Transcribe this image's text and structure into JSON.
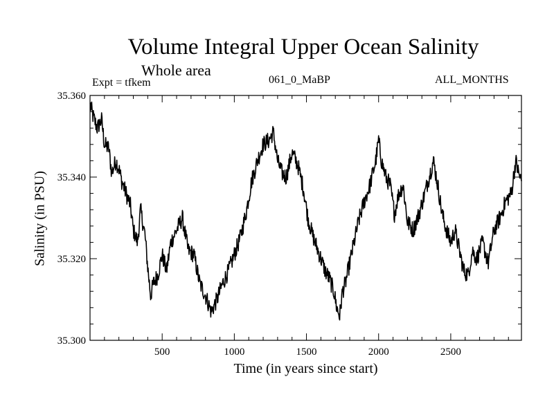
{
  "chart_data": {
    "type": "line",
    "title": "Volume Integral Upper Ocean Salinity",
    "subtitle": "Whole area",
    "annotations": {
      "experiment": "Expt = tfkem",
      "run": "061_0_MaBP",
      "months": "ALL_MONTHS"
    },
    "xlabel": "Time (in years since start)",
    "ylabel": "Salinity (in PSU)",
    "xlim": [
      0,
      2990
    ],
    "ylim": [
      35.3,
      35.36
    ],
    "xticks": [
      500,
      1000,
      1500,
      2000,
      2500
    ],
    "yticks": [
      "35.300",
      "35.320",
      "35.340",
      "35.360"
    ],
    "grid": false,
    "line_color": "#000000",
    "series": [
      {
        "x": [
          0,
          20,
          50,
          80,
          100,
          130,
          150,
          180,
          200,
          220,
          250,
          280,
          300,
          330,
          350,
          380,
          400,
          420,
          440,
          470,
          500,
          530,
          560,
          600,
          640,
          680,
          720,
          760,
          800,
          840,
          880,
          920,
          960,
          1000,
          1040,
          1080,
          1120,
          1160,
          1200,
          1240,
          1270,
          1300,
          1330,
          1360,
          1400,
          1440,
          1480,
          1510,
          1540,
          1570,
          1600,
          1630,
          1660,
          1690,
          1710,
          1730,
          1750,
          1770,
          1800,
          1830,
          1860,
          1900,
          1940,
          1980,
          2000,
          2020,
          2050,
          2080,
          2110,
          2140,
          2170,
          2200,
          2240,
          2280,
          2320,
          2350,
          2380,
          2410,
          2440,
          2470,
          2500,
          2530,
          2560,
          2590,
          2620,
          2650,
          2680,
          2720,
          2760,
          2800,
          2840,
          2880,
          2920,
          2950,
          2970,
          2990
        ],
        "y": [
          35.358,
          35.355,
          35.352,
          35.354,
          35.348,
          35.347,
          35.341,
          35.344,
          35.342,
          35.339,
          35.336,
          35.333,
          35.327,
          35.324,
          35.332,
          35.326,
          35.318,
          35.311,
          35.314,
          35.316,
          35.321,
          35.317,
          35.324,
          35.327,
          35.33,
          35.322,
          35.321,
          35.314,
          35.311,
          35.307,
          35.31,
          35.314,
          35.317,
          35.321,
          35.325,
          35.331,
          35.339,
          35.344,
          35.348,
          35.349,
          35.351,
          35.344,
          35.341,
          35.34,
          35.346,
          35.343,
          35.337,
          35.33,
          35.326,
          35.323,
          35.32,
          35.317,
          35.315,
          35.312,
          35.308,
          35.306,
          35.312,
          35.314,
          35.319,
          35.324,
          35.329,
          35.334,
          35.338,
          35.344,
          35.349,
          35.344,
          35.34,
          35.338,
          35.331,
          35.336,
          35.338,
          35.329,
          35.327,
          35.331,
          35.336,
          35.34,
          35.344,
          35.338,
          35.331,
          35.327,
          35.324,
          35.327,
          35.322,
          35.317,
          35.316,
          35.322,
          35.32,
          35.324,
          35.319,
          35.327,
          35.33,
          35.334,
          35.336,
          35.344,
          35.341,
          35.339
        ]
      }
    ]
  }
}
